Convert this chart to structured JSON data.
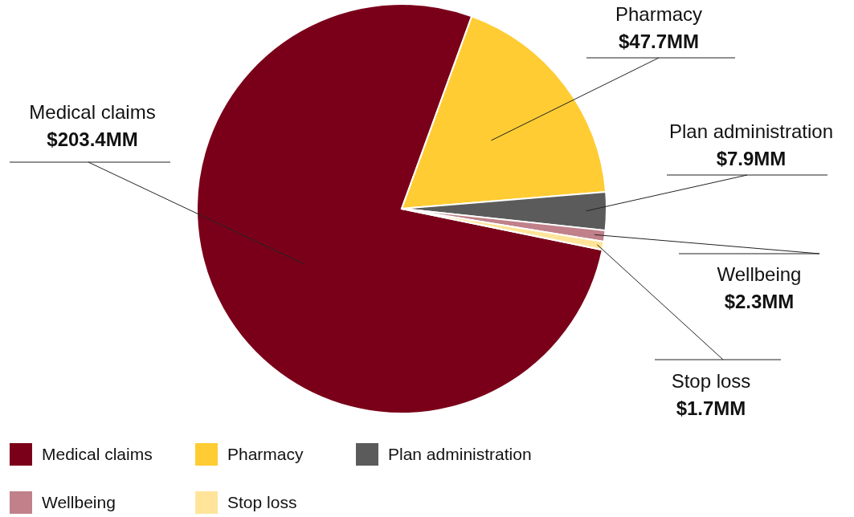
{
  "chart_data": {
    "type": "pie",
    "categories": [
      "Medical claims",
      "Pharmacy",
      "Plan administration",
      "Wellbeing",
      "Stop loss"
    ],
    "values": [
      203.4,
      47.7,
      7.9,
      2.3,
      1.7
    ],
    "value_labels": [
      "$203.4MM",
      "$47.7MM",
      "$7.9MM",
      "$2.3MM",
      "$1.7MM"
    ],
    "colors": [
      "#7a0019",
      "#ffcc33",
      "#5b5b5b",
      "#c0818a",
      "#ffe49a"
    ],
    "legend": "bottom"
  }
}
